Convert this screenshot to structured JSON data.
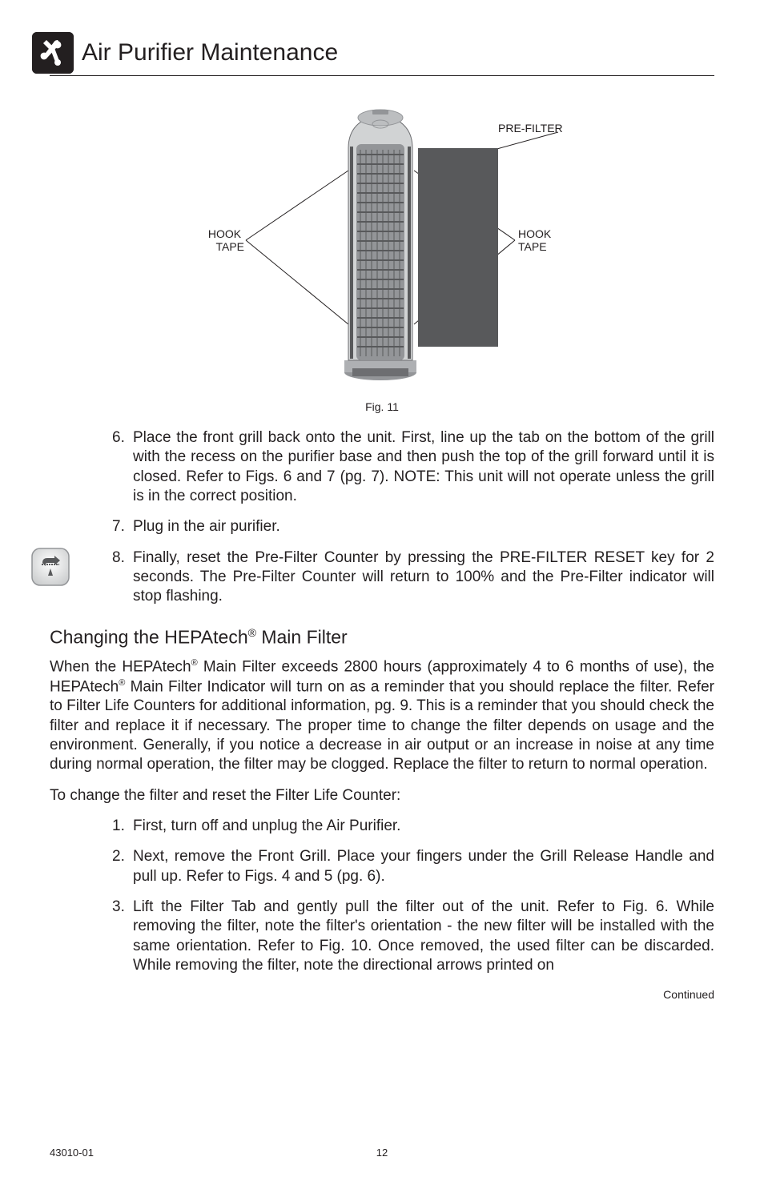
{
  "header": {
    "title": "Air Purifier Maintenance"
  },
  "figure": {
    "labels": {
      "hook_tape_left_line1": "HOOK",
      "hook_tape_left_line2": "TAPE",
      "hook_tape_right_line1": "HOOK",
      "hook_tape_right_line2": "TAPE",
      "pre_filter": "PRE-FILTER"
    },
    "caption": "Fig. 11"
  },
  "steps_a": [
    {
      "num": "6.",
      "text": "Place the front grill back onto the unit. First, line up the tab on the bottom of the grill with the recess on the purifier base and then push the top of the grill forward until it is closed. Refer to Figs. 6 and 7 (pg. 7). NOTE: This unit will not operate unless the grill is in the correct position."
    },
    {
      "num": "7.",
      "text": "Plug in the air purifier."
    },
    {
      "num": "8.",
      "text": "Finally, reset the Pre-Filter Counter by pressing the PRE-FILTER RESET key for 2 seconds. The Pre-Filter Counter will return to 100% and the Pre-Filter indicator will stop flashing."
    }
  ],
  "section": {
    "heading_pre": "Changing the HEPAtech",
    "heading_post": " Main Filter"
  },
  "body": {
    "p1_a": "When the HEPAtech",
    "p1_b": " Main Filter exceeds 2800 hours (approximately 4 to 6 months of use), the HEPAtech",
    "p1_c": " Main Filter Indicator will turn on as a reminder that you should replace the filter. Refer to Filter Life Counters for additional information, pg. 9. This is a reminder that you should check the filter and replace it if necessary. The proper time to change the filter depends on usage and the environment. Generally, if you notice a decrease in air output or an increase in noise at any time during normal operation, the filter may be clogged. Replace the filter to return to normal operation.",
    "p2": "To change the filter and reset the Filter Life Counter:"
  },
  "steps_b": [
    {
      "num": "1.",
      "text": "First, turn off and unplug the Air Purifier."
    },
    {
      "num": "2.",
      "text": "Next, remove the Front Grill.  Place your fingers under the Grill Release Handle and pull up. Refer to Figs. 4 and 5 (pg. 6)."
    },
    {
      "num": "3.",
      "text": "Lift the Filter Tab and gently pull the filter out of the unit. Refer to Fig. 6. While removing the filter, note the filter's orientation -  the new filter will be installed with the same orientation. Refer to Fig. 10. Once removed, the used filter can be discarded. While removing the filter, note the directional arrows printed on"
    }
  ],
  "continued": "Continued",
  "footer": {
    "model": "43010-01",
    "page": "12"
  },
  "colors": {
    "text": "#231f20",
    "bg": "#ffffff",
    "icon_bg": "#231f20",
    "purifier_body": "#aeb0b3",
    "purifier_dark": "#6d6e71",
    "purifier_light": "#d1d3d4",
    "prefilter": "#58595b",
    "line": "#231f20"
  }
}
